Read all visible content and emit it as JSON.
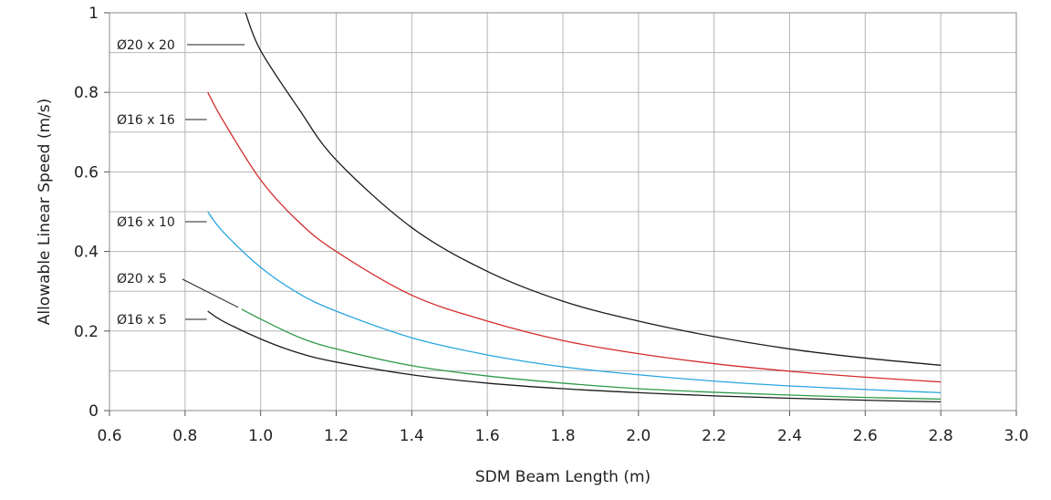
{
  "chart_data": {
    "type": "line",
    "xlabel": "SDM Beam Length (m)",
    "ylabel": "Allowable Linear Speed (m/s)",
    "xlim": [
      0.6,
      3.0
    ],
    "ylim": [
      0,
      1.0
    ],
    "x_ticks": [
      "0.6",
      "0.8",
      "1.0",
      "1.2",
      "1.4",
      "1.6",
      "1.8",
      "2.0",
      "2.2",
      "2.4",
      "2.6",
      "2.8",
      "3.0"
    ],
    "y_ticks": [
      "0",
      "0.2",
      "0.4",
      "0.6",
      "0.8",
      "1"
    ],
    "grid": true,
    "series": [
      {
        "name": "Ø20 x 20",
        "color": "#1a1a1a",
        "x": [
          0.96,
          1.0,
          1.1,
          1.2,
          1.4,
          1.6,
          1.8,
          2.0,
          2.2,
          2.4,
          2.6,
          2.8
        ],
        "y": [
          1.0,
          0.905,
          0.76,
          0.63,
          0.46,
          0.35,
          0.275,
          0.225,
          0.186,
          0.155,
          0.132,
          0.114
        ]
      },
      {
        "name": "Ø16 x 16",
        "color": "#d42a2a",
        "x": [
          0.86,
          0.9,
          1.0,
          1.1,
          1.2,
          1.4,
          1.6,
          1.8,
          2.0,
          2.2,
          2.4,
          2.6,
          2.8
        ],
        "y": [
          0.8,
          0.73,
          0.58,
          0.475,
          0.4,
          0.29,
          0.225,
          0.176,
          0.143,
          0.118,
          0.099,
          0.084,
          0.072
        ]
      },
      {
        "name": "Ø16 x 10",
        "color": "#27a6df",
        "x": [
          0.86,
          0.9,
          1.0,
          1.1,
          1.2,
          1.4,
          1.6,
          1.8,
          2.0,
          2.2,
          2.4,
          2.6,
          2.8
        ],
        "y": [
          0.5,
          0.45,
          0.36,
          0.295,
          0.25,
          0.183,
          0.14,
          0.11,
          0.09,
          0.074,
          0.062,
          0.053,
          0.045
        ]
      },
      {
        "name": "Ø20 x 5",
        "color": "#2e9a48",
        "x": [
          0.95,
          1.0,
          1.1,
          1.2,
          1.4,
          1.6,
          1.8,
          2.0,
          2.2,
          2.4,
          2.6,
          2.8
        ],
        "y": [
          0.255,
          0.23,
          0.185,
          0.155,
          0.113,
          0.087,
          0.069,
          0.055,
          0.046,
          0.039,
          0.033,
          0.029
        ]
      },
      {
        "name": "Ø16 x 5",
        "color": "#1a1a1a",
        "x": [
          0.86,
          0.9,
          1.0,
          1.1,
          1.2,
          1.4,
          1.6,
          1.8,
          2.0,
          2.2,
          2.4,
          2.6,
          2.8
        ],
        "y": [
          0.25,
          0.225,
          0.18,
          0.145,
          0.122,
          0.09,
          0.069,
          0.055,
          0.045,
          0.037,
          0.031,
          0.026,
          0.022
        ]
      }
    ]
  }
}
